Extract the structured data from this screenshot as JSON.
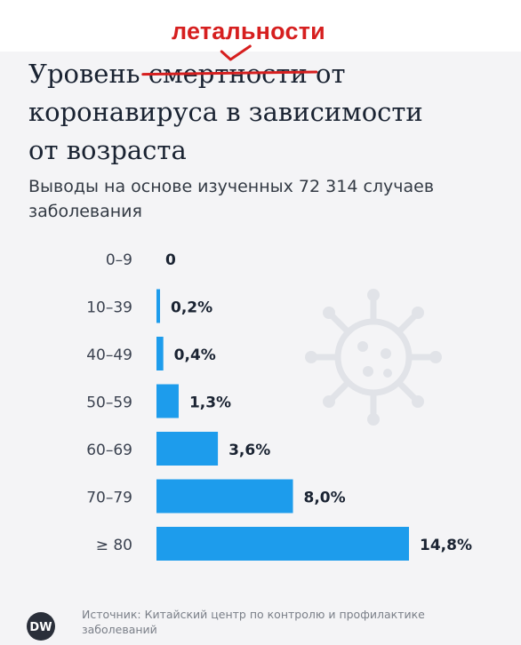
{
  "correction_text": "летальности",
  "title": {
    "line1_prefix": "Уровень ",
    "line1_struck": "смертности",
    "line1_suffix": " от",
    "line2": "коронавируса в зависимости",
    "line3": "от возраста"
  },
  "subtitle": "Выводы на основе изученных 72 314 случаев заболевания",
  "source": "Источник: Китайский центр по контролю и профилактике заболеваний",
  "logo_text": "DW",
  "colors": {
    "bar": "#1d9cec",
    "correction": "#d61f1f",
    "title": "#1a2332",
    "background": "#f4f4f6"
  },
  "icons": [
    "virus-icon",
    "dw-logo-icon"
  ],
  "chart_data": {
    "type": "bar",
    "orientation": "horizontal",
    "categories": [
      "0–9",
      "10–39",
      "40–49",
      "50–59",
      "60–69",
      "70–79",
      "≥ 80"
    ],
    "values": [
      0,
      0.2,
      0.4,
      1.3,
      3.6,
      8.0,
      14.8
    ],
    "value_labels": [
      "0",
      "0,2%",
      "0,4%",
      "1,3%",
      "3,6%",
      "8,0%",
      "14,8%"
    ],
    "xlim": [
      0,
      14.8
    ],
    "grid": false,
    "legend": "none"
  }
}
